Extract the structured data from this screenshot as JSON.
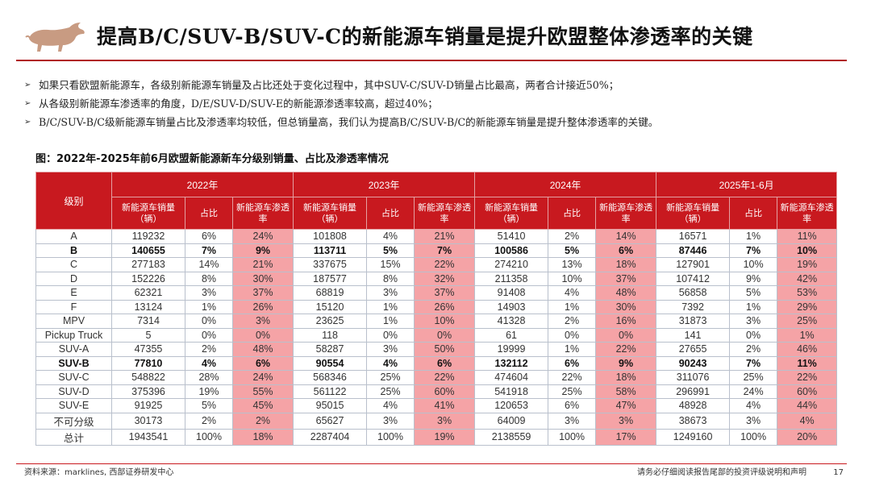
{
  "header": {
    "title": "提高B/C/SUV-B/SUV-C的新能源车销量是提升欧盟整体渗透率的关键",
    "logo_icon": "bull-logo-icon",
    "accent_color": "#b0191e"
  },
  "bullets": [
    "如果只看欧盟新能源车，各级别新能源车销量及占比还处于变化过程中，其中SUV-C/SUV-D销量占比最高，两者合计接近50%；",
    "从各级别新能源车渗透率的角度，D/E/SUV-D/SUV-E的新能源渗透率较高，超过40%；",
    "B/C/SUV-B/C级新能源车销量占比及渗透率均较低，但总销量高，我们认为提高B/C/SUV-B/C的新能源车销量是提升整体渗透率的关键。"
  ],
  "figure_title": "图：2022年-2025年前6月欧盟新能源新车分级别销量、占比及渗透率情况",
  "table": {
    "corner_header": "级别",
    "years": [
      "2022年",
      "2023年",
      "2024年",
      "2025年1-6月"
    ],
    "sub_headers": [
      "新能源车销量（辆）",
      "占比",
      "新能源车渗透率"
    ],
    "rows": [
      {
        "label": "A",
        "bold": false,
        "cells": [
          "119232",
          "6%",
          "24%",
          "101808",
          "4%",
          "21%",
          "51410",
          "2%",
          "14%",
          "16571",
          "1%",
          "11%"
        ]
      },
      {
        "label": "B",
        "bold": true,
        "cells": [
          "140655",
          "7%",
          "9%",
          "113711",
          "5%",
          "7%",
          "100586",
          "5%",
          "6%",
          "87446",
          "7%",
          "10%"
        ]
      },
      {
        "label": "C",
        "bold": false,
        "cells": [
          "277183",
          "14%",
          "21%",
          "337675",
          "15%",
          "22%",
          "274210",
          "13%",
          "18%",
          "127901",
          "10%",
          "19%"
        ]
      },
      {
        "label": "D",
        "bold": false,
        "cells": [
          "152226",
          "8%",
          "30%",
          "187577",
          "8%",
          "32%",
          "211358",
          "10%",
          "37%",
          "107412",
          "9%",
          "42%"
        ]
      },
      {
        "label": "E",
        "bold": false,
        "cells": [
          "62321",
          "3%",
          "37%",
          "68819",
          "3%",
          "37%",
          "91408",
          "4%",
          "48%",
          "56858",
          "5%",
          "53%"
        ]
      },
      {
        "label": "F",
        "bold": false,
        "cells": [
          "13124",
          "1%",
          "26%",
          "15120",
          "1%",
          "26%",
          "14903",
          "1%",
          "30%",
          "7392",
          "1%",
          "29%"
        ]
      },
      {
        "label": "MPV",
        "bold": false,
        "cells": [
          "7314",
          "0%",
          "3%",
          "23625",
          "1%",
          "10%",
          "41328",
          "2%",
          "16%",
          "31873",
          "3%",
          "25%"
        ]
      },
      {
        "label": "Pickup Truck",
        "bold": false,
        "cells": [
          "5",
          "0%",
          "0%",
          "118",
          "0%",
          "0%",
          "61",
          "0%",
          "0%",
          "141",
          "0%",
          "1%"
        ]
      },
      {
        "label": "SUV-A",
        "bold": false,
        "cells": [
          "47355",
          "2%",
          "48%",
          "58287",
          "3%",
          "50%",
          "19999",
          "1%",
          "22%",
          "27655",
          "2%",
          "46%"
        ]
      },
      {
        "label": "SUV-B",
        "bold": true,
        "cells": [
          "77810",
          "4%",
          "6%",
          "90554",
          "4%",
          "6%",
          "132112",
          "6%",
          "9%",
          "90243",
          "7%",
          "11%"
        ]
      },
      {
        "label": "SUV-C",
        "bold": false,
        "cells": [
          "548822",
          "28%",
          "24%",
          "568346",
          "25%",
          "22%",
          "474604",
          "22%",
          "18%",
          "311076",
          "25%",
          "22%"
        ]
      },
      {
        "label": "SUV-D",
        "bold": false,
        "cells": [
          "375396",
          "19%",
          "55%",
          "561122",
          "25%",
          "60%",
          "541918",
          "25%",
          "58%",
          "296991",
          "24%",
          "60%"
        ]
      },
      {
        "label": "SUV-E",
        "bold": false,
        "cells": [
          "91925",
          "5%",
          "45%",
          "95015",
          "4%",
          "41%",
          "120653",
          "6%",
          "47%",
          "48928",
          "4%",
          "44%"
        ]
      },
      {
        "label": "不可分级",
        "bold": false,
        "cells": [
          "30173",
          "2%",
          "2%",
          "65627",
          "3%",
          "3%",
          "64009",
          "3%",
          "3%",
          "38673",
          "3%",
          "4%"
        ]
      },
      {
        "label": "总计",
        "bold": false,
        "cells": [
          "1943541",
          "100%",
          "18%",
          "2287404",
          "100%",
          "19%",
          "2138559",
          "100%",
          "17%",
          "1249160",
          "100%",
          "20%"
        ]
      }
    ],
    "header_color": "#c8191f",
    "penetration_color": "#f5a3a6"
  },
  "footer": {
    "source": "资料来源：marklines, 西部证券研发中心",
    "disclaimer": "请务必仔细阅读报告尾部的投资评级说明和声明",
    "page_number": "17"
  }
}
